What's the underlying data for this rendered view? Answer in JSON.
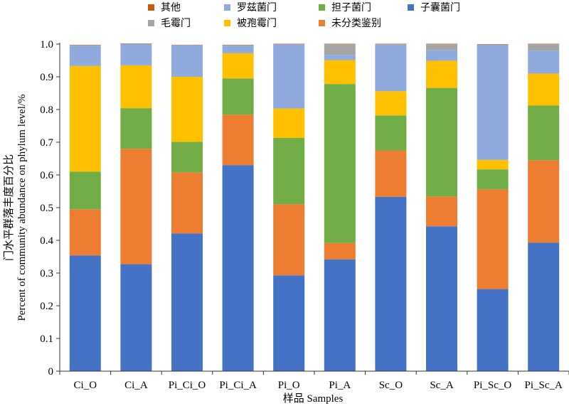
{
  "chart_data": {
    "type": "bar",
    "stacked": true,
    "categories": [
      "Ci_O",
      "Ci_A",
      "Pi_Ci_O",
      "Pi_Ci_A",
      "Pi_O",
      "Pi_A",
      "Sc_O",
      "Sc_A",
      "Pi_Sc_O",
      "Pi_Sc_A"
    ],
    "xlabel": "样品 Samples",
    "ylabel": "门水平群落丰度百分比",
    "ylabel2": "Percent of community abundance on phylum level/%",
    "ylim": [
      0,
      1.0
    ],
    "yticks": [
      "0",
      "0.1",
      "0.2",
      "0.3",
      "0.4",
      "0.5",
      "0.6",
      "0.7",
      "0.8",
      "0.9",
      "1.0"
    ],
    "grid": false,
    "legend_position": "top",
    "legend_order": [
      "其他",
      "罗兹菌门",
      "担子菌门",
      "子囊菌门",
      "毛霉门",
      "被孢霉门",
      "未分类鉴别"
    ],
    "series": [
      {
        "name": "子囊菌门",
        "color": "#4472C4",
        "values": [
          0.354,
          0.327,
          0.421,
          0.63,
          0.293,
          0.342,
          0.533,
          0.443,
          0.251,
          0.393
        ]
      },
      {
        "name": "未分类鉴别",
        "color": "#ED7D31",
        "values": [
          0.141,
          0.353,
          0.187,
          0.154,
          0.217,
          0.05,
          0.142,
          0.091,
          0.305,
          0.252
        ]
      },
      {
        "name": "担子菌门",
        "color": "#70AD47",
        "values": [
          0.115,
          0.124,
          0.093,
          0.111,
          0.203,
          0.486,
          0.107,
          0.332,
          0.061,
          0.167
        ]
      },
      {
        "name": "被孢霉门",
        "color": "#FFC000",
        "values": [
          0.323,
          0.131,
          0.199,
          0.077,
          0.09,
          0.073,
          0.074,
          0.083,
          0.029,
          0.098
        ]
      },
      {
        "name": "罗兹菌门",
        "color": "#8FAADC",
        "values": [
          0.062,
          0.065,
          0.096,
          0.023,
          0.196,
          0.016,
          0.142,
          0.032,
          0.352,
          0.07
        ]
      },
      {
        "name": "毛霉门",
        "color": "#A5A5A5",
        "values": [
          0.002,
          0.001,
          0.001,
          0.002,
          0.001,
          0.033,
          0.002,
          0.019,
          0.001,
          0.02
        ]
      },
      {
        "name": "其他",
        "color": "#C55A11",
        "values": [
          0.001,
          0.001,
          0.001,
          0.001,
          0.001,
          0.001,
          0.001,
          0.001,
          0.001,
          0.001
        ]
      }
    ]
  }
}
